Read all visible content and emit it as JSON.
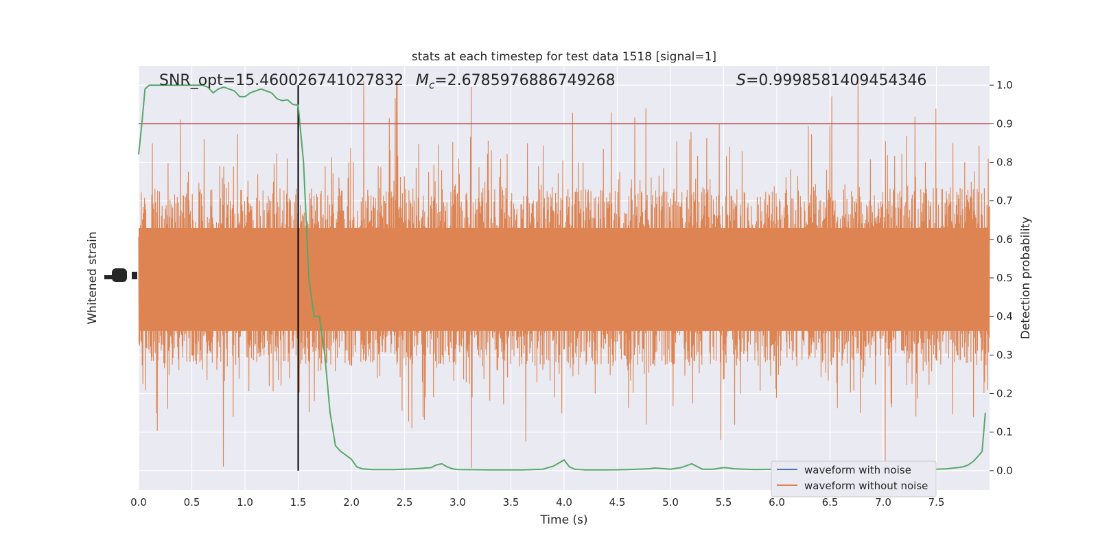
{
  "chart_data": {
    "type": "line",
    "title": "stats at each timestep for test data 1518 [signal=1]",
    "xlabel": "Time (s)",
    "ylabel_left": "Whitened strain",
    "ylabel_right": "Detection probability",
    "xlim": [
      0,
      8
    ],
    "ylim_right": [
      -0.05,
      1.05
    ],
    "x_ticks": [
      "0.0",
      "0.5",
      "1.0",
      "1.5",
      "2.0",
      "2.5",
      "3.0",
      "3.5",
      "4.0",
      "4.5",
      "5.0",
      "5.5",
      "6.0",
      "6.5",
      "7.0",
      "7.5"
    ],
    "right_ticks": [
      "0.0",
      "0.1",
      "0.2",
      "0.3",
      "0.4",
      "0.5",
      "0.6",
      "0.7",
      "0.8",
      "0.9",
      "1.0"
    ],
    "grid": true,
    "background": "#eaeaf2",
    "annotations": {
      "snr": "SNR_opt=15.460026741027832",
      "mc_symbol": "M",
      "mc_sub": "c",
      "mc_value": "=2.6785976886749268",
      "s_symbol": "S",
      "s_value": "=0.9998581409454346"
    },
    "threshold": {
      "value": 0.9,
      "color": "#c44e52"
    },
    "event_time": {
      "x": 1.5,
      "color": "#000000"
    },
    "series": [
      {
        "name": "waveform with noise",
        "color": "#4c72b0"
      },
      {
        "name": "waveform without noise",
        "color": "#dd8452"
      }
    ],
    "probability_series": {
      "color": "#55a868",
      "x": [
        0.0,
        0.03,
        0.06,
        0.1,
        0.15,
        0.2,
        0.3,
        0.4,
        0.5,
        0.6,
        0.65,
        0.7,
        0.75,
        0.8,
        0.85,
        0.9,
        0.95,
        1.0,
        1.05,
        1.1,
        1.15,
        1.2,
        1.25,
        1.3,
        1.35,
        1.4,
        1.45,
        1.5,
        1.55,
        1.6,
        1.65,
        1.7,
        1.75,
        1.8,
        1.85,
        1.9,
        1.95,
        2.0,
        2.05,
        2.1,
        2.2,
        2.4,
        2.6,
        2.75,
        2.8,
        2.85,
        2.9,
        2.95,
        3.0,
        3.3,
        3.6,
        3.8,
        3.9,
        4.0,
        4.05,
        4.1,
        4.2,
        4.4,
        4.6,
        4.8,
        4.85,
        4.9,
        5.0,
        5.05,
        5.1,
        5.2,
        5.3,
        5.4,
        5.5,
        5.55,
        5.6,
        5.7,
        5.8,
        6.0,
        6.5,
        7.0,
        7.3,
        7.5,
        7.6,
        7.7,
        7.75,
        7.8,
        7.85,
        7.9,
        7.93,
        7.96
      ],
      "y": [
        0.82,
        0.9,
        0.99,
        1.0,
        1.0,
        1.0,
        1.0,
        1.0,
        1.0,
        1.0,
        0.995,
        0.98,
        0.99,
        0.995,
        0.99,
        0.985,
        0.97,
        0.97,
        0.98,
        0.985,
        0.99,
        0.985,
        0.98,
        0.965,
        0.96,
        0.962,
        0.95,
        0.948,
        0.8,
        0.5,
        0.4,
        0.4,
        0.3,
        0.15,
        0.065,
        0.05,
        0.04,
        0.03,
        0.01,
        0.005,
        0.003,
        0.003,
        0.005,
        0.008,
        0.015,
        0.018,
        0.01,
        0.005,
        0.003,
        0.002,
        0.002,
        0.004,
        0.012,
        0.028,
        0.01,
        0.004,
        0.002,
        0.002,
        0.003,
        0.005,
        0.007,
        0.006,
        0.004,
        0.006,
        0.008,
        0.018,
        0.004,
        0.004,
        0.008,
        0.007,
        0.005,
        0.004,
        0.003,
        0.004,
        0.003,
        0.003,
        0.004,
        0.004,
        0.005,
        0.008,
        0.01,
        0.015,
        0.025,
        0.04,
        0.05,
        0.15
      ]
    }
  }
}
